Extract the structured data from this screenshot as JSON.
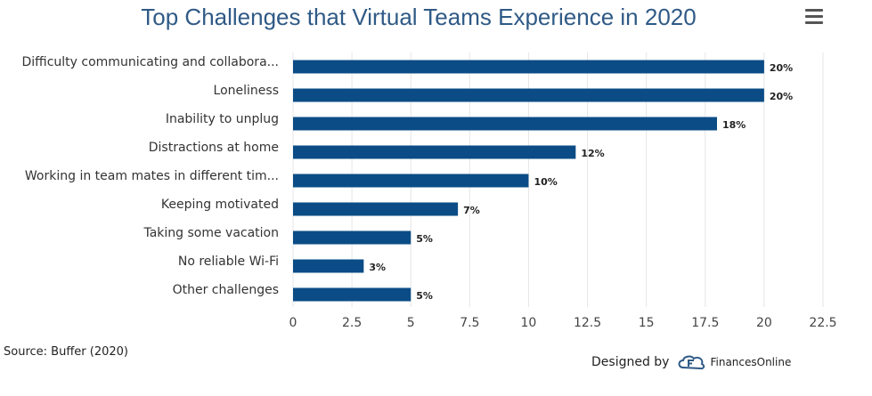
{
  "title": "Top Challenges that Virtual Teams Experience in 2020",
  "source": "Source: Buffer (2020)",
  "designed_by": "Designed by",
  "brand": "FinancesOnline",
  "colors": {
    "bar": "#0b4c86",
    "title": "#2f5a86",
    "grid": "#e6e6e6"
  },
  "menu_icon": "hamburger-icon",
  "chart_data": {
    "type": "bar",
    "orientation": "horizontal",
    "categories": [
      "Difficulty communicating and collabora...",
      "Loneliness",
      "Inability to unplug",
      "Distractions at home",
      "Working in team mates in different tim...",
      "Keeping motivated",
      "Taking some vacation",
      "No reliable Wi-Fi",
      "Other challenges"
    ],
    "values": [
      20,
      20,
      18,
      12,
      10,
      7,
      5,
      3,
      5
    ],
    "data_labels": [
      "20%",
      "20%",
      "18%",
      "12%",
      "10%",
      "7%",
      "5%",
      "3%",
      "5%"
    ],
    "xticks": [
      "0",
      "2.5",
      "5",
      "7.5",
      "10",
      "12.5",
      "15",
      "17.5",
      "20",
      "22.5"
    ],
    "xlim": [
      0,
      22.5
    ],
    "grid": true,
    "title": "Top Challenges that Virtual Teams Experience in 2020"
  }
}
